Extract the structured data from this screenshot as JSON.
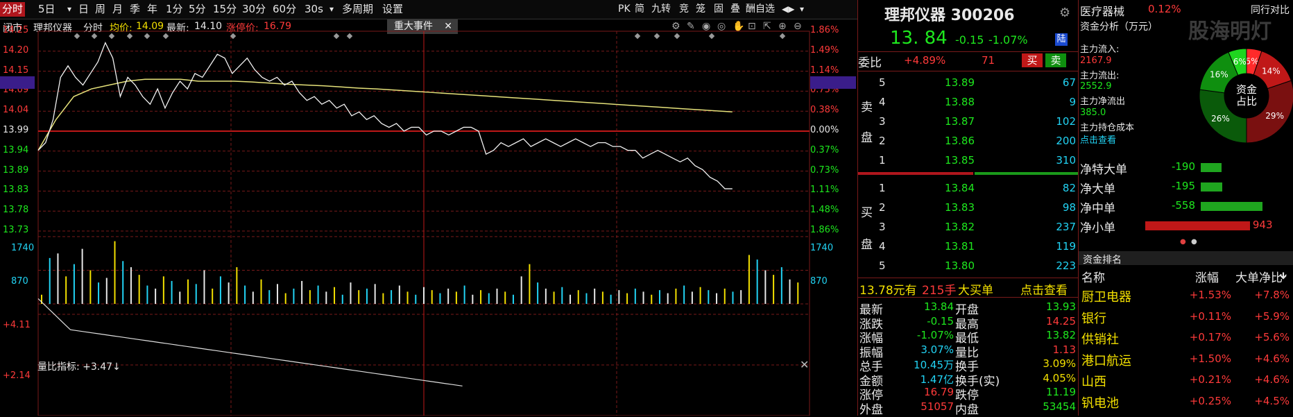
{
  "toolbar": {
    "items": [
      "分时",
      "5日",
      "▾",
      "日",
      "周",
      "月",
      "季",
      "年",
      "1分",
      "5分",
      "15分",
      "30分",
      "60分",
      "30s",
      "▾",
      "多周期",
      "设置"
    ],
    "right": [
      "PK",
      "简",
      "九转",
      "竞",
      "笼",
      "固",
      "叠",
      "酬自选",
      "◀▶",
      "▾"
    ]
  },
  "header": {
    "status": "闭市",
    "name": "理邦仪器",
    "mode": "分时",
    "avg_label": "均价:",
    "avg_value": "14.09",
    "last_label": "最新:",
    "last_value": "14.10",
    "limit_label": "涨停价:",
    "limit_value": "16.79",
    "event_tab": "重大事件",
    "event_close": "✕"
  },
  "axes": {
    "price_ticks": [
      "14.25",
      "14.20",
      "14.15",
      "14.09",
      "14.04",
      "13.99",
      "13.94",
      "13.89",
      "13.83",
      "13.78",
      "13.73"
    ],
    "pct_ticks": [
      "1.86%",
      "1.49%",
      "1.14%",
      "0.75%",
      "0.38%",
      "0.00%",
      "0.37%",
      "0.73%",
      "1.11%",
      "1.48%",
      "1.86%"
    ],
    "vol_ticks": [
      "1740",
      "870"
    ],
    "lb_label": "量比指标: +3.47↓",
    "lb_ticks": [
      "+4.11",
      "+2.14"
    ]
  },
  "chart_data": {
    "type": "line",
    "title": "",
    "series": [
      {
        "values": [
          13.94,
          13.96,
          14.02,
          14.13,
          14.16,
          14.13,
          14.11,
          14.14,
          14.17,
          14.22,
          14.18,
          14.08,
          14.13,
          14.11,
          14.08,
          14.06,
          14.1,
          14.05,
          14.09,
          14.12,
          14.1,
          14.14,
          14.13,
          14.16,
          14.19,
          14.18,
          14.14,
          14.16,
          14.18,
          14.15,
          14.13,
          14.12,
          14.13,
          14.11,
          14.12,
          14.09,
          14.07,
          14.08,
          14.06,
          14.07,
          14.05,
          14.06,
          14.03,
          14.04,
          14.02,
          14.03,
          14.01,
          14.0,
          14.01,
          13.99,
          14.0,
          14.0,
          13.98,
          13.99,
          13.99,
          13.98,
          13.99,
          14.0,
          14.0,
          13.99,
          13.93,
          13.94,
          13.96,
          13.95,
          13.96,
          13.97,
          13.95,
          13.96,
          13.97,
          13.96,
          13.95,
          13.96,
          13.97,
          13.96,
          13.95,
          13.96,
          13.96,
          13.95,
          13.95,
          13.94,
          13.94,
          13.92,
          13.93,
          13.94,
          13.93,
          13.92,
          13.91,
          13.92,
          13.9,
          13.89,
          13.87,
          13.86,
          13.84,
          13.84
        ]
      },
      {
        "values": [
          13.94,
          14.02,
          14.08,
          14.1,
          14.11,
          14.12,
          14.125,
          14.125,
          14.125,
          14.12,
          14.12,
          14.12,
          14.118,
          14.115,
          14.112,
          14.11,
          14.108,
          14.105,
          14.102,
          14.1,
          14.097,
          14.094,
          14.091,
          14.088,
          14.085,
          14.082,
          14.079,
          14.076,
          14.073,
          14.07,
          14.067,
          14.064,
          14.061,
          14.058,
          14.055,
          14.052,
          14.049,
          14.046,
          14.043,
          14.04
        ]
      }
    ],
    "ylim": [
      13.73,
      14.25
    ]
  },
  "volume_data": [
    300,
    1500,
    1650,
    900,
    1300,
    1800,
    1100,
    700,
    850,
    2050,
    1400,
    1200,
    950,
    600,
    500,
    900,
    750,
    400,
    800,
    650,
    1100,
    500,
    900,
    700,
    1200,
    600,
    400,
    800,
    450,
    650,
    350,
    500,
    750,
    450,
    600,
    400,
    550,
    300,
    700,
    450,
    500,
    650,
    350,
    450,
    600,
    400,
    300,
    550,
    450,
    350,
    500,
    400,
    600,
    300,
    450,
    350,
    500,
    400,
    300,
    900,
    1300,
    700,
    500,
    400,
    550,
    300,
    450,
    350,
    500,
    400,
    300,
    450,
    350,
    500,
    400,
    300,
    450,
    350,
    500,
    600,
    400,
    550,
    450,
    350,
    500,
    400,
    450,
    1600,
    1450,
    1100,
    950,
    1200,
    800,
    700
  ],
  "quote": {
    "title": "理邦仪器 300206",
    "price": "13. 84",
    "change": "-0.15",
    "change_pct": "-1.07%",
    "exchange_badge": "陆",
    "weibi_label": "委比",
    "weibi_value": "+4.89%",
    "weicha": "71",
    "buy_btn": "买",
    "sell_btn": "卖",
    "sell_label": [
      "卖",
      "盘"
    ],
    "buy_label": [
      "买",
      "盘"
    ],
    "asks": [
      {
        "lvl": "5",
        "price": "13.89",
        "vol": "67"
      },
      {
        "lvl": "4",
        "price": "13.88",
        "vol": "9"
      },
      {
        "lvl": "3",
        "price": "13.87",
        "vol": "102"
      },
      {
        "lvl": "2",
        "price": "13.86",
        "vol": "200"
      },
      {
        "lvl": "1",
        "price": "13.85",
        "vol": "310"
      }
    ],
    "bids": [
      {
        "lvl": "1",
        "price": "13.84",
        "vol": "82"
      },
      {
        "lvl": "2",
        "price": "13.83",
        "vol": "98"
      },
      {
        "lvl": "3",
        "price": "13.82",
        "vol": "237"
      },
      {
        "lvl": "4",
        "price": "13.81",
        "vol": "119"
      },
      {
        "lvl": "5",
        "price": "13.80",
        "vol": "223"
      }
    ],
    "big_order": {
      "price": "13.78元有",
      "lots": "215手",
      "label": "大买单",
      "link": "点击查看"
    },
    "stats": [
      {
        "k1": "最新",
        "v1": "13.84",
        "c1": "green",
        "k2": "开盘",
        "v2": "13.93",
        "c2": "green"
      },
      {
        "k1": "涨跌",
        "v1": "-0.15",
        "c1": "green",
        "k2": "最高",
        "v2": "14.25",
        "c2": "red"
      },
      {
        "k1": "涨幅",
        "v1": "-1.07%",
        "c1": "green",
        "k2": "最低",
        "v2": "13.82",
        "c2": "green"
      },
      {
        "k1": "振幅",
        "v1": "3.07%",
        "c1": "cyan",
        "k2": "量比",
        "v2": "1.13",
        "c2": "red"
      },
      {
        "k1": "总手",
        "v1": "10.45万",
        "c1": "cyan",
        "k2": "换手",
        "v2": "3.09%",
        "c2": "yellow"
      },
      {
        "k1": "金额",
        "v1": "1.47亿",
        "c1": "cyan",
        "k2": "换手(实)",
        "v2": "4.05%",
        "c2": "yellow"
      },
      {
        "k1": "涨停",
        "v1": "16.79",
        "c1": "red",
        "k2": "跌停",
        "v2": "11.19",
        "c2": "green"
      },
      {
        "k1": "外盘",
        "v1": "51057",
        "c1": "red",
        "k2": "内盘",
        "v2": "53454",
        "c2": "green"
      }
    ]
  },
  "fund": {
    "sector": "医疗器械",
    "sector_pct": "0.12%",
    "tab_right": "同行对比",
    "watermark": "股海明灯",
    "analysis_label": "资金分析（万元）",
    "inflow_label": "主力流入:",
    "inflow_value": "2167.9",
    "outflow_label": "主力流出:",
    "outflow_value": "2552.9",
    "net_label": "主力净流出",
    "net_value": "385.0",
    "cost_label": "主力持仓成本",
    "cost_link": "点击查看",
    "donut_center": [
      "资金",
      "占比"
    ],
    "donut": [
      {
        "label": "5%",
        "value": 5,
        "color": "#ff2a2a"
      },
      {
        "label": "14%",
        "value": 14,
        "color": "#c01818"
      },
      {
        "label": "29%",
        "value": 29,
        "color": "#7a1010"
      },
      {
        "label": "26%",
        "value": 26,
        "color": "#0a5a0a"
      },
      {
        "label": "16%",
        "value": 16,
        "color": "#0f8f0f"
      },
      {
        "label": "6%",
        "value": 6,
        "color": "#1fd61f"
      }
    ],
    "net_rows": [
      {
        "label": "净特大单",
        "value": "-190",
        "num": -190
      },
      {
        "label": "净大单",
        "value": "-195",
        "num": -195
      },
      {
        "label": "净中单",
        "value": "-558",
        "num": -558
      },
      {
        "label": "净小单",
        "value": "943",
        "num": 943
      }
    ],
    "rank_title": "资金排名",
    "rank_headers": [
      "名称",
      "涨幅",
      "大单净比"
    ],
    "rank_sort": "🡻",
    "rank": [
      {
        "name": "厨卫电器",
        "pct": "+1.53%",
        "ratio": "+7.8%"
      },
      {
        "name": "银行",
        "pct": "+0.11%",
        "ratio": "+5.9%"
      },
      {
        "name": "供销社",
        "pct": "+0.17%",
        "ratio": "+5.6%"
      },
      {
        "name": "港口航运",
        "pct": "+1.50%",
        "ratio": "+4.6%"
      },
      {
        "name": "山西",
        "pct": "+0.21%",
        "ratio": "+4.6%"
      },
      {
        "name": "钒电池",
        "pct": "+0.25%",
        "ratio": "+4.5%"
      }
    ]
  }
}
